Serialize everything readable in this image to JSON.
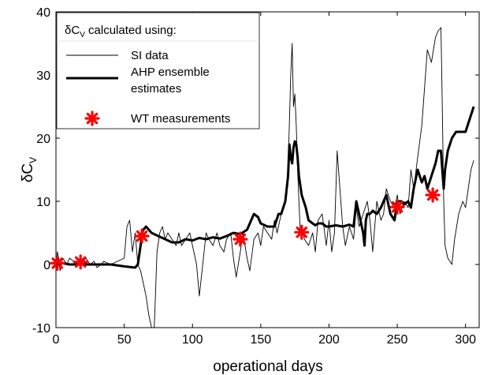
{
  "chart_data": {
    "type": "line",
    "title": "",
    "xlabel": "operational days",
    "ylabel_main": "δC",
    "ylabel_sub": "V",
    "xlim": [
      0,
      310
    ],
    "ylim": [
      -10,
      40
    ],
    "xticks": [
      0,
      50,
      100,
      150,
      200,
      250,
      300
    ],
    "yticks": [
      -10,
      0,
      10,
      20,
      30,
      40
    ],
    "grid": false,
    "legend_placement": "top-left",
    "legend_title_main": "δC",
    "legend_title_sub": "V",
    "legend_title_rest": " calculated using:",
    "series": [
      {
        "name": "SI data",
        "style": "thin-line",
        "color": "#000000",
        "x": [
          0,
          1,
          2,
          3,
          5,
          8,
          10,
          13,
          15,
          18,
          20,
          22,
          25,
          28,
          30,
          33,
          35,
          40,
          45,
          50,
          52,
          54,
          56,
          58,
          60,
          62,
          64,
          66,
          68,
          70,
          72,
          73,
          74,
          76,
          78,
          80,
          82,
          85,
          88,
          90,
          92,
          95,
          98,
          100,
          103,
          105,
          108,
          110,
          112,
          115,
          118,
          120,
          123,
          125,
          128,
          130,
          132,
          135,
          137,
          140,
          142,
          145,
          148,
          150,
          152,
          155,
          158,
          160,
          162,
          165,
          168,
          170,
          172,
          173,
          174,
          175,
          176,
          177,
          178,
          179,
          180,
          182,
          185,
          188,
          190,
          192,
          195,
          198,
          200,
          202,
          204,
          206,
          208,
          210,
          212,
          215,
          218,
          220,
          222,
          225,
          228,
          230,
          232,
          235,
          238,
          240,
          242,
          245,
          248,
          250,
          252,
          255,
          258,
          260,
          262,
          265,
          268,
          270,
          272,
          275,
          278,
          280,
          282,
          283,
          284,
          285,
          287,
          290,
          292,
          295,
          298,
          300,
          302,
          304,
          306
        ],
        "values": [
          0,
          2,
          1,
          -1,
          1,
          0,
          1,
          0.5,
          0,
          1,
          0.5,
          1,
          0,
          0.5,
          -0.5,
          0,
          0.5,
          0,
          0.5,
          1,
          6,
          7,
          2,
          5,
          0,
          -1,
          -3,
          -5,
          -8,
          -10,
          -10,
          -4,
          2,
          5,
          6,
          4,
          5,
          4,
          3,
          5,
          3,
          4,
          5,
          3,
          0,
          -5,
          1,
          5,
          4,
          3,
          5,
          3,
          2,
          4,
          5,
          1,
          -2,
          2,
          5,
          1,
          -1,
          4,
          5,
          3,
          6,
          5,
          4,
          7,
          5,
          8,
          10,
          15,
          30,
          35,
          25,
          27,
          22,
          15,
          10,
          5,
          6,
          4,
          3,
          5,
          2,
          7,
          8,
          3,
          7,
          2,
          5,
          18,
          12,
          6,
          3,
          6,
          4,
          9,
          6,
          8,
          10,
          7,
          2,
          10,
          7,
          8,
          12,
          10,
          9,
          11,
          8,
          10,
          9,
          15,
          12,
          17,
          22,
          28,
          34,
          32,
          36,
          37,
          37.5,
          25,
          10,
          3,
          1,
          0,
          4,
          8,
          10,
          9,
          12,
          15,
          16.5
        ]
      },
      {
        "name": "AHP ensemble estimates",
        "style": "thick-line",
        "color": "#000000",
        "x": [
          0,
          5,
          10,
          20,
          30,
          40,
          50,
          58,
          60,
          62,
          63,
          64,
          66,
          68,
          70,
          75,
          80,
          85,
          90,
          95,
          100,
          105,
          110,
          115,
          120,
          125,
          130,
          135,
          140,
          143,
          145,
          148,
          150,
          155,
          160,
          163,
          165,
          168,
          170,
          171,
          172,
          173,
          174,
          175,
          176,
          177,
          178,
          180,
          183,
          185,
          188,
          190,
          192,
          195,
          198,
          200,
          205,
          210,
          215,
          218,
          220,
          222,
          225,
          226,
          227,
          228,
          230,
          232,
          235,
          238,
          240,
          242,
          245,
          248,
          250,
          253,
          255,
          258,
          260,
          262,
          265,
          268,
          270,
          272,
          275,
          278,
          280,
          282,
          283,
          284,
          285,
          287,
          290,
          293,
          296,
          300,
          303,
          306
        ],
        "values": [
          0,
          0.2,
          0,
          0,
          0,
          0,
          -0.3,
          -0.5,
          0,
          3,
          5,
          5.5,
          6,
          5.5,
          5,
          4.5,
          4,
          3.5,
          3.5,
          4,
          3.8,
          4.2,
          4,
          4.3,
          4.1,
          4.5,
          5,
          4.8,
          5.5,
          7,
          8,
          7.5,
          6.5,
          6,
          6,
          8,
          8,
          10,
          14,
          19,
          17,
          16,
          18.5,
          19.5,
          19,
          17,
          14,
          11,
          9,
          7,
          6.5,
          6.2,
          6.5,
          6.5,
          6,
          6,
          6.2,
          6,
          6.3,
          6,
          10,
          8,
          5,
          3,
          7,
          8,
          8,
          8.5,
          8,
          9,
          10,
          11,
          8,
          7,
          10,
          10,
          9.5,
          10,
          9,
          12,
          15,
          13,
          14,
          12,
          14,
          16,
          18,
          18,
          15,
          12,
          15,
          18,
          20,
          21,
          21,
          21,
          23,
          25
        ]
      },
      {
        "name": "WT measurements",
        "style": "star-marker",
        "color": "#ff0000",
        "x": [
          1,
          18,
          63,
          135,
          180,
          250,
          276
        ],
        "values": [
          0.2,
          0.4,
          4.5,
          4.0,
          5.1,
          9.1,
          11.0
        ]
      }
    ]
  }
}
